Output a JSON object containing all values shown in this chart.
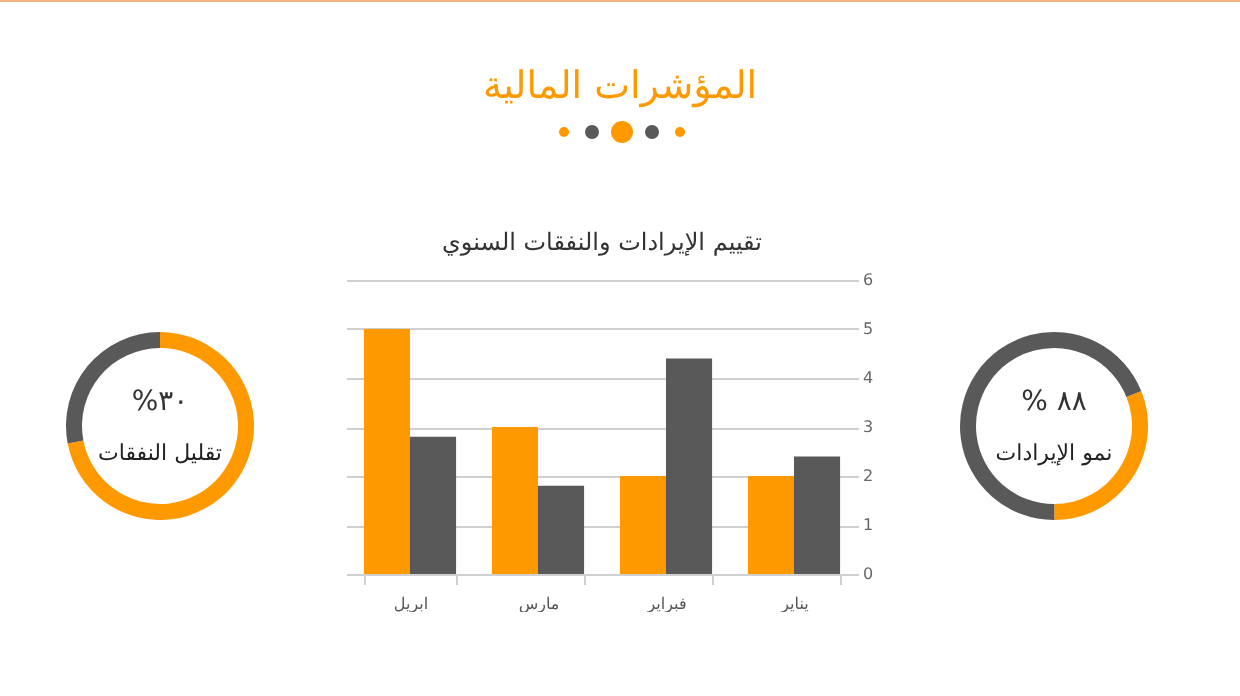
{
  "chart_data": [
    {
      "type": "donut",
      "title": "تقليل النفقات",
      "annotations": [
        "%٣٠"
      ],
      "categories": [
        null,
        null
      ],
      "values": [
        72,
        28
      ],
      "colors": [
        "#ff9900",
        "#595959"
      ]
    },
    {
      "type": "bar",
      "title": "المؤشرات المالية",
      "subtitle": "تقييم الإيرادات والنفقات السنوي",
      "categories": [
        "ابريل",
        "مارس",
        "فبراير",
        "يناير"
      ],
      "series": [
        {
          "color": "#ff9900",
          "values": [
            5,
            3,
            2,
            2
          ]
        },
        {
          "color": "#595959",
          "values": [
            2.8,
            1.8,
            4.4,
            2.4
          ]
        }
      ],
      "ylim": [
        0,
        6
      ],
      "yticks": [
        0,
        1,
        2,
        3,
        4,
        5,
        6
      ],
      "grid": "y",
      "legend": false
    },
    {
      "type": "donut",
      "title": "نمو الإيرادات",
      "annotations": [
        "% ٨٨"
      ],
      "categories": [
        null,
        null
      ],
      "values": [
        31,
        69
      ],
      "colors": [
        "#ff9900",
        "#595959"
      ]
    }
  ]
}
